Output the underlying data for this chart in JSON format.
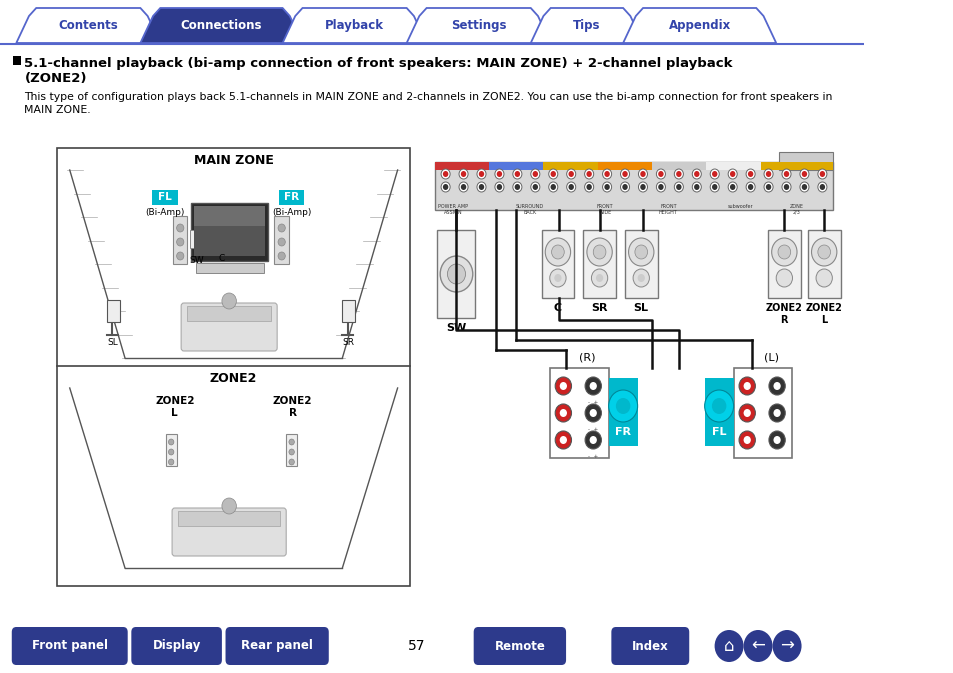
{
  "bg_color": "#ffffff",
  "page_number": "57",
  "nav_tabs": [
    "Contents",
    "Connections",
    "Playback",
    "Settings",
    "Tips",
    "Appendix"
  ],
  "active_tab": 1,
  "tab_color_active": "#2d3a8c",
  "tab_color_inactive": "#ffffff",
  "tab_text_color_active": "#ffffff",
  "tab_text_color_inactive": "#3344aa",
  "tab_border_color": "#5566cc",
  "title_text": " 5.1-channel playback (bi-amp connection of front speakers: MAIN ZONE) + 2-channel playback\n   (ZONE2)",
  "body_text": "This type of configuration plays back 5.1-channels in MAIN ZONE and 2-channels in ZONE2. You can use the bi-amp connection for front speakers in\nMAIN ZONE.",
  "bottom_buttons": [
    "Front panel",
    "Display",
    "Rear panel",
    "Remote",
    "Index"
  ],
  "bottom_btn_color": "#2d3a8c",
  "bottom_btn_text_color": "#ffffff",
  "teal_color": "#00b8cc",
  "dark_color": "#222222",
  "gray_color": "#888888",
  "light_gray": "#dddddd",
  "line_color": "#111111"
}
